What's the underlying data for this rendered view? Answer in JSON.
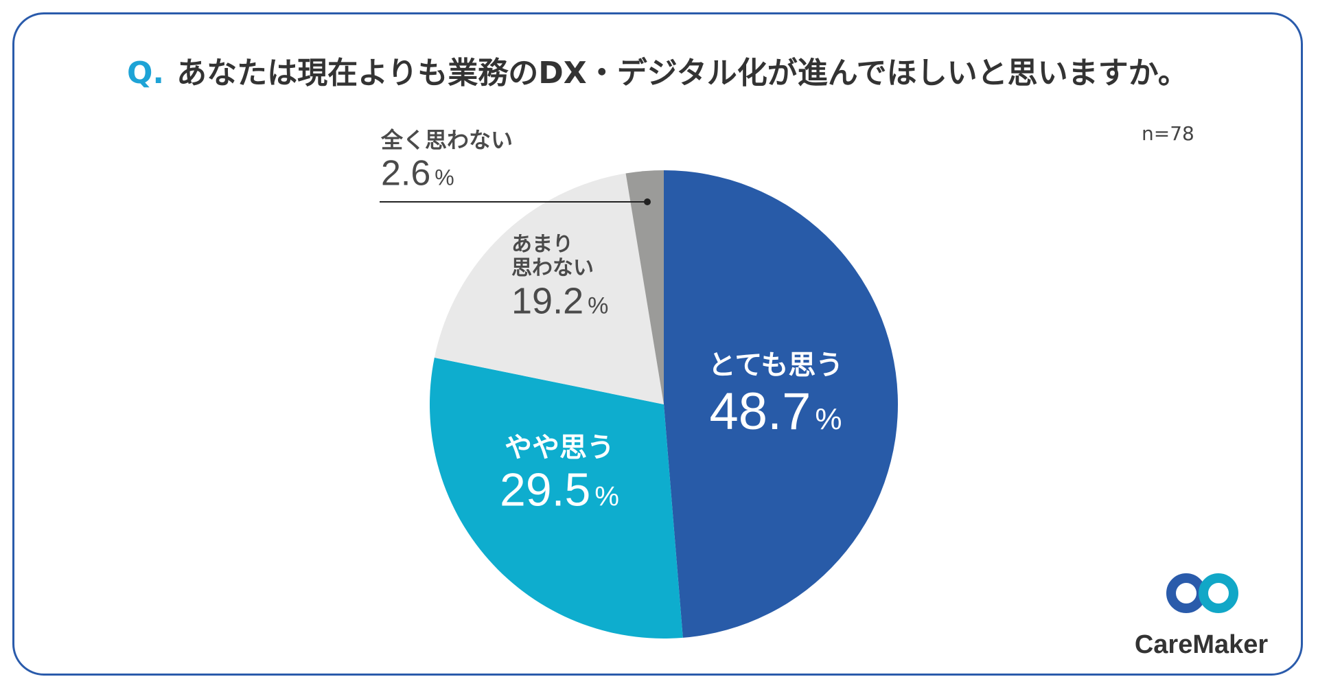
{
  "title": {
    "prefix": "Q.",
    "question": "あなたは現在よりも業務のDX・デジタル化が進んでほしいと思いますか。"
  },
  "sample": "n=78",
  "brand": "CareMaker",
  "colors": {
    "border": "#2a5bab",
    "q_accent": "#1ea3d6"
  },
  "chart_data": {
    "type": "pie",
    "title": "あなたは現在よりも業務のDX・デジタル化が進んでほしいと思いますか。",
    "n": 78,
    "unit": "%",
    "slices": [
      {
        "label": "とても思う",
        "value": 48.7,
        "color": "#285ba8",
        "text_color": "#ffffff"
      },
      {
        "label": "やや思う",
        "value": 29.5,
        "color": "#0eadce",
        "text_color": "#ffffff"
      },
      {
        "label": "あまり\n思わない",
        "value": 19.2,
        "color": "#e9e9e9",
        "text_color": "#4a4a4a"
      },
      {
        "label": "全く思わない",
        "value": 2.6,
        "color": "#9b9b99",
        "text_color": "#4a4a4a"
      }
    ]
  }
}
